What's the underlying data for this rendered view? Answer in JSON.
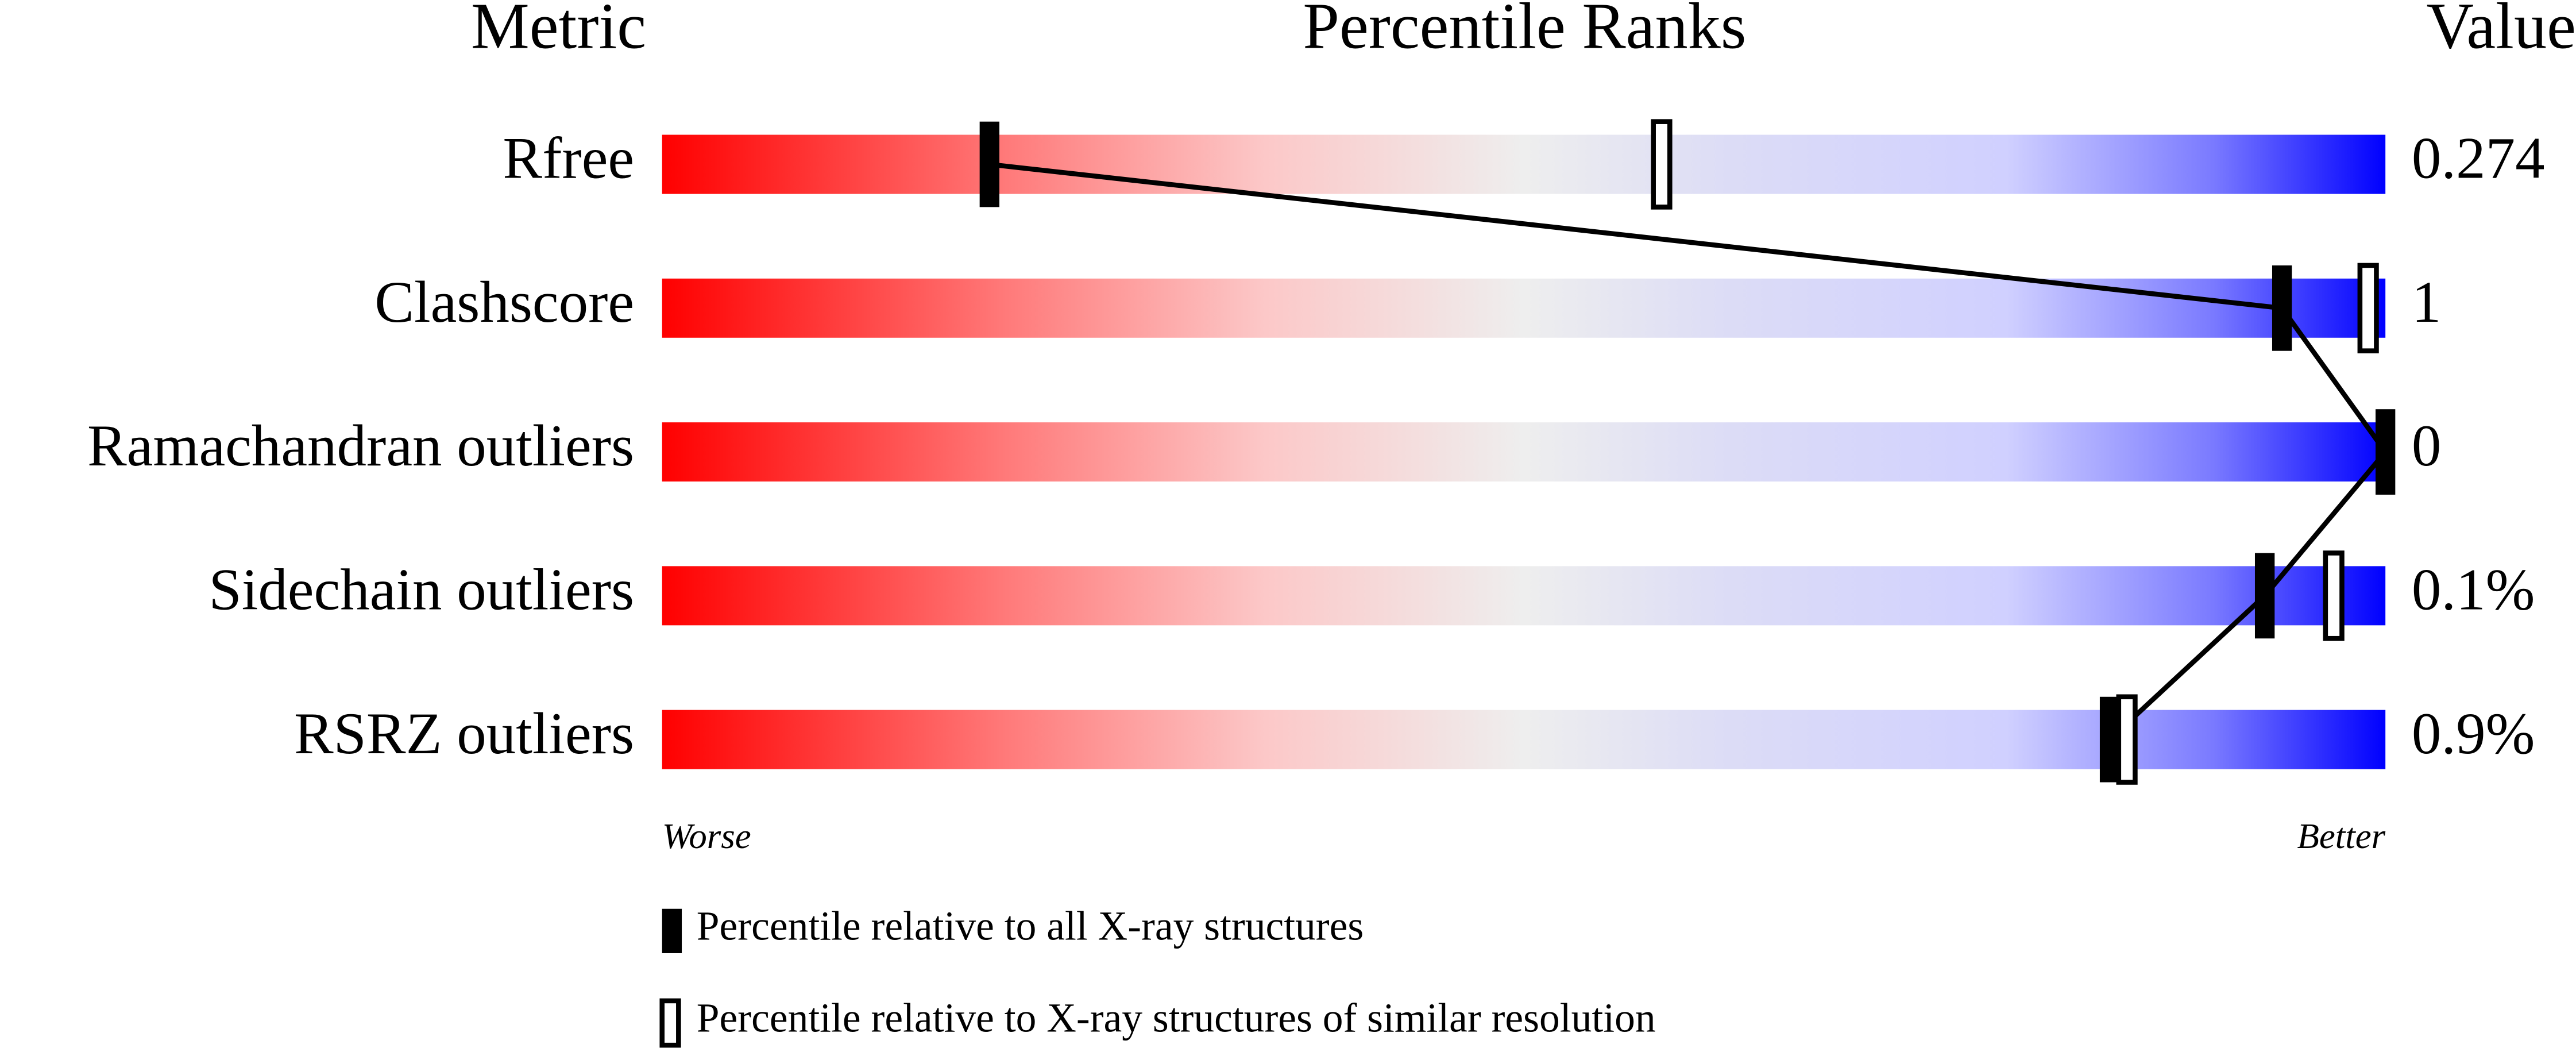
{
  "chart_data": {
    "type": "percentile",
    "headers": {
      "metric": "Metric",
      "ranks": "Percentile Ranks",
      "value": "Value"
    },
    "categories": [
      "Rfree",
      "Clashscore",
      "Ramachandran outliers",
      "Sidechain outliers",
      "RSRZ outliers"
    ],
    "metric_values": [
      "0.274",
      "1",
      "0",
      "0.1%",
      "0.9%"
    ],
    "xlim": [
      0,
      100
    ],
    "scale_labels": {
      "low": "Worse",
      "high": "Better"
    },
    "series": [
      {
        "name": "Percentile relative to all X-ray structures",
        "color": "#000000",
        "filled": true,
        "values": [
          19,
          94,
          100,
          93,
          84
        ]
      },
      {
        "name": "Percentile relative to X-ray structures of similar resolution",
        "color": "#000000",
        "filled": false,
        "values": [
          58,
          99,
          null,
          97,
          85
        ]
      }
    ]
  }
}
